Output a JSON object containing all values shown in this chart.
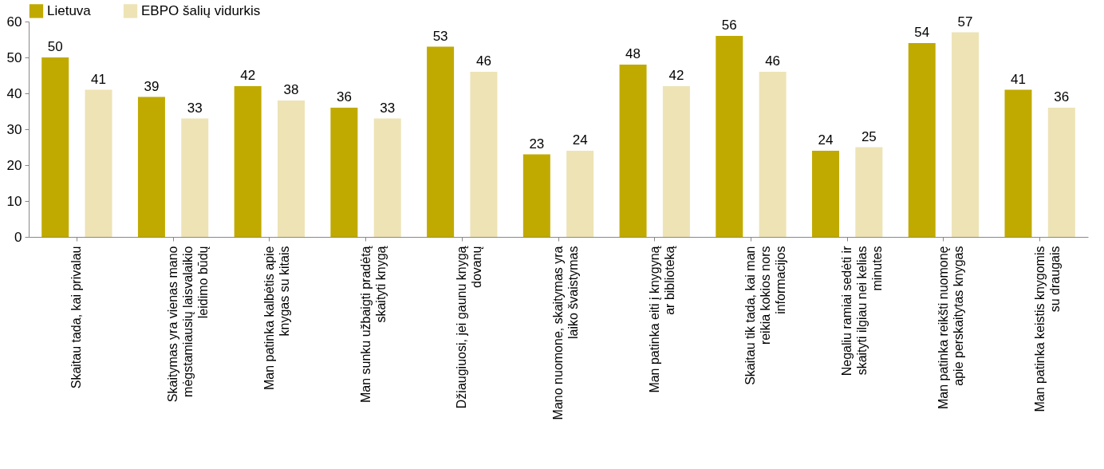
{
  "chart_data": {
    "type": "bar",
    "categories": [
      "Skaitau tada, kai privalau",
      "Skaitymas yra vienas mano mėgstamiausių laisvalaikio leidimo būdų",
      "Man patinka kalbėtis apie knygas su kitais",
      "Man sunku užbaigti pradėtą skaityti knygą",
      "Džiaugiuosi, jei gaunu knygą dovanų",
      "Mano nuomone, skaitymas yra laiko švaistymas",
      "Man patinka eiti į knygyną ar biblioteką",
      "Skaitau tik tada, kai man reikia kokios nors informacijos",
      "Negaliu ramiai sedėti ir skaityti ilgiau nei kelias minutes",
      "Man patinka reikšti nuomonę apie perskaitytas knygas",
      "Man patinka keistis knygomis su draugais"
    ],
    "series": [
      {
        "name": "Lietuva",
        "color": "#c0aa00",
        "values": [
          50,
          39,
          42,
          36,
          53,
          23,
          48,
          56,
          24,
          54,
          41
        ]
      },
      {
        "name": "EBPO šalių vidurkis",
        "color": "#ede3b5",
        "values": [
          41,
          33,
          38,
          33,
          46,
          24,
          42,
          46,
          25,
          57,
          36
        ]
      }
    ],
    "ylim": [
      0,
      60
    ],
    "yticks": [
      0,
      10,
      20,
      30,
      40,
      50,
      60
    ],
    "grid": false,
    "legend": "top",
    "data_labels": true
  }
}
